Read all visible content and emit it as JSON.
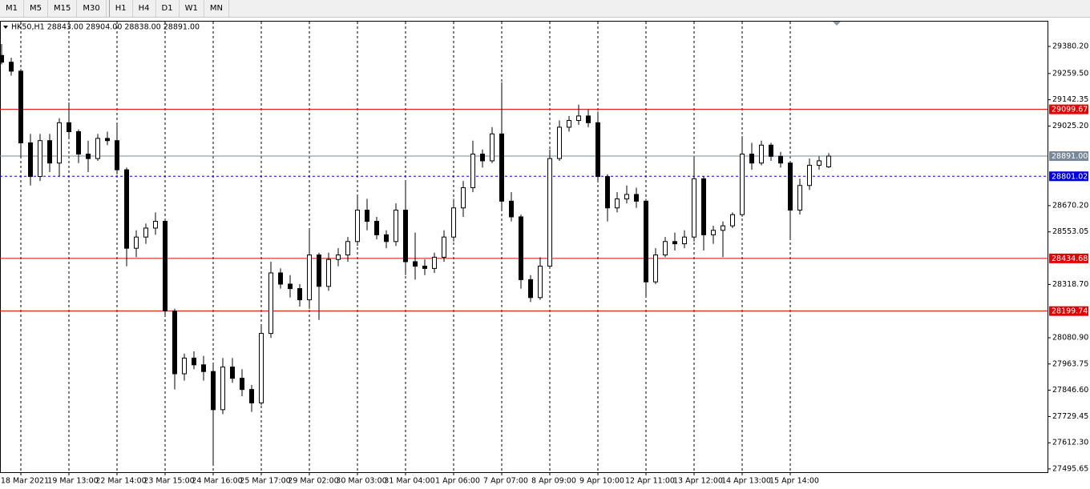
{
  "toolbar": [
    "M1",
    "M5",
    "M15",
    "M30",
    "H1",
    "H4",
    "D1",
    "W1",
    "MN"
  ],
  "chart_data": {
    "type": "candlestick",
    "title": "HK50,H1  28843.00 28904.00 28838.00 28891.00",
    "categories": [
      null,
      null,
      "18 Mar 2021",
      null,
      null,
      null,
      null,
      "19 Mar 13:00",
      null,
      null,
      null,
      null,
      "22 Mar 14:00",
      null,
      null,
      null,
      null,
      "23 Mar 15:00",
      null,
      null,
      null,
      null,
      "24 Mar 16:00",
      null,
      null,
      null,
      null,
      "25 Mar 17:00",
      null,
      null,
      null,
      null,
      "29 Mar 02:00",
      null,
      null,
      null,
      null,
      "30 Mar 03:00",
      null,
      null,
      null,
      null,
      "31 Mar 04:00",
      null,
      null,
      null,
      null,
      "1 Apr 06:00",
      null,
      null,
      null,
      null,
      "7 Apr 07:00",
      null,
      null,
      null,
      null,
      "8 Apr 09:00",
      null,
      null,
      null,
      null,
      "9 Apr 10:00",
      null,
      null,
      null,
      null,
      "12 Apr 11:00",
      null,
      null,
      null,
      null,
      "13 Apr 12:00",
      null,
      null,
      null,
      null,
      "14 Apr 13:00",
      null,
      null,
      null,
      null,
      "15 Apr 14:00",
      null,
      null,
      null,
      null
    ],
    "open": [
      29340,
      29310,
      29270,
      28950,
      28800,
      28960,
      28860,
      29040,
      29000,
      28900,
      28880,
      28970,
      28960,
      28830,
      28480,
      28530,
      28570,
      28600,
      28200,
      27920,
      27990,
      27960,
      27930,
      27760,
      27950,
      27900,
      27850,
      27790,
      28100,
      28370,
      28320,
      28300,
      28250,
      28450,
      28310,
      28430,
      28450,
      28510,
      28650,
      28600,
      28540,
      28510,
      28650,
      28420,
      28400,
      28390,
      28440,
      28530,
      28660,
      28750,
      28900,
      28870,
      28990,
      28690,
      28620,
      28340,
      28260,
      28400,
      28880,
      29020,
      29050,
      29070,
      29040,
      28800,
      28660,
      28700,
      28720,
      28690,
      28330,
      28450,
      28510,
      28500,
      28530,
      28790,
      28540,
      28560,
      28580,
      28630,
      28900,
      28860,
      28940,
      28890,
      28860,
      28650,
      28760,
      28850,
      28843
    ],
    "high": [
      29391,
      29330,
      29280,
      28990,
      28990,
      28990,
      29060,
      29130,
      29010,
      28960,
      28990,
      29000,
      29030,
      28840,
      28560,
      28590,
      28640,
      28610,
      28210,
      28010,
      28020,
      28000,
      27960,
      27990,
      27990,
      27940,
      27870,
      28140,
      28420,
      28390,
      28360,
      28320,
      28560,
      28460,
      28460,
      28480,
      28530,
      28720,
      28700,
      28620,
      28560,
      28680,
      28780,
      28550,
      28430,
      28460,
      28560,
      28700,
      28780,
      28960,
      28920,
      29020,
      29220,
      28730,
      28630,
      28360,
      28440,
      28920,
      29050,
      29070,
      29120,
      29100,
      29090,
      28810,
      28730,
      28760,
      28750,
      28700,
      28480,
      28530,
      28550,
      28560,
      28880,
      28800,
      28580,
      28600,
      28640,
      28980,
      28950,
      28960,
      28950,
      28910,
      28870,
      28790,
      28880,
      28890,
      28904
    ],
    "low": [
      29300,
      29250,
      28880,
      28760,
      28780,
      28820,
      28800,
      28970,
      28860,
      28820,
      28870,
      28940,
      28810,
      28400,
      28440,
      28500,
      28540,
      28180,
      27850,
      27890,
      27940,
      27890,
      27520,
      27740,
      27880,
      27820,
      27750,
      27780,
      28080,
      28300,
      28260,
      28220,
      28210,
      28160,
      28290,
      28400,
      28420,
      28490,
      28560,
      28520,
      28480,
      28490,
      28360,
      28340,
      28360,
      28370,
      28420,
      28510,
      28620,
      28730,
      28840,
      28860,
      28650,
      28600,
      28300,
      28240,
      28250,
      28390,
      28870,
      29000,
      29030,
      29020,
      28780,
      28600,
      28640,
      28680,
      28660,
      28270,
      28320,
      28440,
      28470,
      28480,
      28510,
      28470,
      28500,
      28440,
      28570,
      28620,
      28830,
      28850,
      28870,
      28840,
      28520,
      28630,
      28740,
      28830,
      28838
    ],
    "close": [
      29310,
      29270,
      28950,
      28800,
      28960,
      28860,
      29040,
      29000,
      28900,
      28880,
      28970,
      28960,
      28830,
      28480,
      28530,
      28570,
      28600,
      28200,
      27920,
      27990,
      27960,
      27930,
      27760,
      27950,
      27900,
      27850,
      27790,
      28100,
      28370,
      28320,
      28300,
      28250,
      28450,
      28310,
      28430,
      28450,
      28510,
      28650,
      28600,
      28540,
      28510,
      28650,
      28420,
      28400,
      28390,
      28440,
      28530,
      28660,
      28750,
      28900,
      28870,
      28990,
      28690,
      28620,
      28340,
      28260,
      28400,
      28880,
      29020,
      29050,
      29070,
      29040,
      28800,
      28660,
      28700,
      28720,
      28690,
      28330,
      28450,
      28510,
      28500,
      28530,
      28790,
      28540,
      28560,
      28580,
      28630,
      28900,
      28860,
      28940,
      28890,
      28860,
      28650,
      28760,
      28850,
      28870,
      28891
    ],
    "ylim": [
      27481,
      29491
    ],
    "yticks": [
      {
        "value": 29380.2,
        "label": "29380.20"
      },
      {
        "value": 29259.5,
        "label": "29259.50"
      },
      29142.35,
      {
        "value": 29025.2,
        "label": "29025.20"
      },
      {
        "value": 28670.2,
        "label": "28670.20"
      },
      28553.05,
      {
        "value": 28318.7,
        "label": "28318.70"
      },
      {
        "value": 28080.9,
        "label": "28080.90"
      },
      27963.75,
      {
        "value": 27846.6,
        "label": "27846.60"
      },
      27729.45,
      {
        "value": 27612.3,
        "label": "27612.30"
      },
      27495.65
    ],
    "levels": [
      {
        "value": 29099.67,
        "color": "#e00000",
        "dashed": false
      },
      {
        "value": 28891,
        "label": "28891.00",
        "color": "#778899",
        "dashed": false
      },
      {
        "value": 28801.02,
        "color": "#0000e0",
        "dashed": true
      },
      {
        "value": 28434.68,
        "color": "#e00000",
        "dashed": false
      },
      {
        "value": 28199.74,
        "color": "#e00000",
        "dashed": false
      }
    ],
    "bull_color": "#ffffff",
    "bear_color": "#000000",
    "grid": true
  }
}
